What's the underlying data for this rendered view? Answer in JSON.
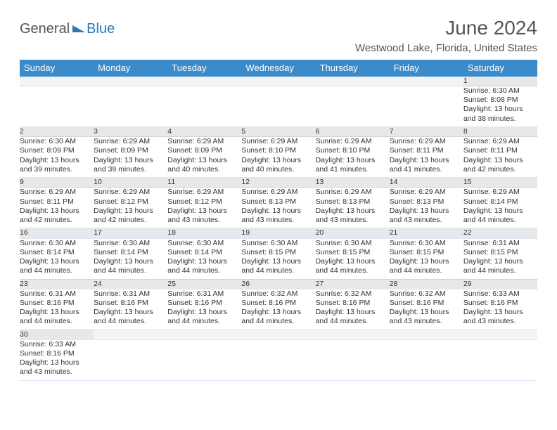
{
  "logo": {
    "part1": "General",
    "part2": "Blue"
  },
  "title": "June 2024",
  "location": "Westwood Lake, Florida, United States",
  "colors": {
    "header_bg": "#3b8aca",
    "header_text": "#ffffff",
    "daynum_bg": "#e8e8e8",
    "rule": "#3b8aca"
  },
  "daysOfWeek": [
    "Sunday",
    "Monday",
    "Tuesday",
    "Wednesday",
    "Thursday",
    "Friday",
    "Saturday"
  ],
  "startWeekday": 6,
  "grid": [
    [
      null,
      null,
      null,
      null,
      null,
      null,
      {
        "n": "1",
        "sunrise": "Sunrise: 6:30 AM",
        "sunset": "Sunset: 8:08 PM",
        "day1": "Daylight: 13 hours",
        "day2": "and 38 minutes."
      }
    ],
    [
      {
        "n": "2",
        "sunrise": "Sunrise: 6:30 AM",
        "sunset": "Sunset: 8:09 PM",
        "day1": "Daylight: 13 hours",
        "day2": "and 39 minutes."
      },
      {
        "n": "3",
        "sunrise": "Sunrise: 6:29 AM",
        "sunset": "Sunset: 8:09 PM",
        "day1": "Daylight: 13 hours",
        "day2": "and 39 minutes."
      },
      {
        "n": "4",
        "sunrise": "Sunrise: 6:29 AM",
        "sunset": "Sunset: 8:09 PM",
        "day1": "Daylight: 13 hours",
        "day2": "and 40 minutes."
      },
      {
        "n": "5",
        "sunrise": "Sunrise: 6:29 AM",
        "sunset": "Sunset: 8:10 PM",
        "day1": "Daylight: 13 hours",
        "day2": "and 40 minutes."
      },
      {
        "n": "6",
        "sunrise": "Sunrise: 6:29 AM",
        "sunset": "Sunset: 8:10 PM",
        "day1": "Daylight: 13 hours",
        "day2": "and 41 minutes."
      },
      {
        "n": "7",
        "sunrise": "Sunrise: 6:29 AM",
        "sunset": "Sunset: 8:11 PM",
        "day1": "Daylight: 13 hours",
        "day2": "and 41 minutes."
      },
      {
        "n": "8",
        "sunrise": "Sunrise: 6:29 AM",
        "sunset": "Sunset: 8:11 PM",
        "day1": "Daylight: 13 hours",
        "day2": "and 42 minutes."
      }
    ],
    [
      {
        "n": "9",
        "sunrise": "Sunrise: 6:29 AM",
        "sunset": "Sunset: 8:11 PM",
        "day1": "Daylight: 13 hours",
        "day2": "and 42 minutes."
      },
      {
        "n": "10",
        "sunrise": "Sunrise: 6:29 AM",
        "sunset": "Sunset: 8:12 PM",
        "day1": "Daylight: 13 hours",
        "day2": "and 42 minutes."
      },
      {
        "n": "11",
        "sunrise": "Sunrise: 6:29 AM",
        "sunset": "Sunset: 8:12 PM",
        "day1": "Daylight: 13 hours",
        "day2": "and 43 minutes."
      },
      {
        "n": "12",
        "sunrise": "Sunrise: 6:29 AM",
        "sunset": "Sunset: 8:13 PM",
        "day1": "Daylight: 13 hours",
        "day2": "and 43 minutes."
      },
      {
        "n": "13",
        "sunrise": "Sunrise: 6:29 AM",
        "sunset": "Sunset: 8:13 PM",
        "day1": "Daylight: 13 hours",
        "day2": "and 43 minutes."
      },
      {
        "n": "14",
        "sunrise": "Sunrise: 6:29 AM",
        "sunset": "Sunset: 8:13 PM",
        "day1": "Daylight: 13 hours",
        "day2": "and 43 minutes."
      },
      {
        "n": "15",
        "sunrise": "Sunrise: 6:29 AM",
        "sunset": "Sunset: 8:14 PM",
        "day1": "Daylight: 13 hours",
        "day2": "and 44 minutes."
      }
    ],
    [
      {
        "n": "16",
        "sunrise": "Sunrise: 6:30 AM",
        "sunset": "Sunset: 8:14 PM",
        "day1": "Daylight: 13 hours",
        "day2": "and 44 minutes."
      },
      {
        "n": "17",
        "sunrise": "Sunrise: 6:30 AM",
        "sunset": "Sunset: 8:14 PM",
        "day1": "Daylight: 13 hours",
        "day2": "and 44 minutes."
      },
      {
        "n": "18",
        "sunrise": "Sunrise: 6:30 AM",
        "sunset": "Sunset: 8:14 PM",
        "day1": "Daylight: 13 hours",
        "day2": "and 44 minutes."
      },
      {
        "n": "19",
        "sunrise": "Sunrise: 6:30 AM",
        "sunset": "Sunset: 8:15 PM",
        "day1": "Daylight: 13 hours",
        "day2": "and 44 minutes."
      },
      {
        "n": "20",
        "sunrise": "Sunrise: 6:30 AM",
        "sunset": "Sunset: 8:15 PM",
        "day1": "Daylight: 13 hours",
        "day2": "and 44 minutes."
      },
      {
        "n": "21",
        "sunrise": "Sunrise: 6:30 AM",
        "sunset": "Sunset: 8:15 PM",
        "day1": "Daylight: 13 hours",
        "day2": "and 44 minutes."
      },
      {
        "n": "22",
        "sunrise": "Sunrise: 6:31 AM",
        "sunset": "Sunset: 8:15 PM",
        "day1": "Daylight: 13 hours",
        "day2": "and 44 minutes."
      }
    ],
    [
      {
        "n": "23",
        "sunrise": "Sunrise: 6:31 AM",
        "sunset": "Sunset: 8:16 PM",
        "day1": "Daylight: 13 hours",
        "day2": "and 44 minutes."
      },
      {
        "n": "24",
        "sunrise": "Sunrise: 6:31 AM",
        "sunset": "Sunset: 8:16 PM",
        "day1": "Daylight: 13 hours",
        "day2": "and 44 minutes."
      },
      {
        "n": "25",
        "sunrise": "Sunrise: 6:31 AM",
        "sunset": "Sunset: 8:16 PM",
        "day1": "Daylight: 13 hours",
        "day2": "and 44 minutes."
      },
      {
        "n": "26",
        "sunrise": "Sunrise: 6:32 AM",
        "sunset": "Sunset: 8:16 PM",
        "day1": "Daylight: 13 hours",
        "day2": "and 44 minutes."
      },
      {
        "n": "27",
        "sunrise": "Sunrise: 6:32 AM",
        "sunset": "Sunset: 8:16 PM",
        "day1": "Daylight: 13 hours",
        "day2": "and 44 minutes."
      },
      {
        "n": "28",
        "sunrise": "Sunrise: 6:32 AM",
        "sunset": "Sunset: 8:16 PM",
        "day1": "Daylight: 13 hours",
        "day2": "and 43 minutes."
      },
      {
        "n": "29",
        "sunrise": "Sunrise: 6:33 AM",
        "sunset": "Sunset: 8:16 PM",
        "day1": "Daylight: 13 hours",
        "day2": "and 43 minutes."
      }
    ],
    [
      {
        "n": "30",
        "sunrise": "Sunrise: 6:33 AM",
        "sunset": "Sunset: 8:16 PM",
        "day1": "Daylight: 13 hours",
        "day2": "and 43 minutes."
      },
      null,
      null,
      null,
      null,
      null,
      null
    ]
  ]
}
